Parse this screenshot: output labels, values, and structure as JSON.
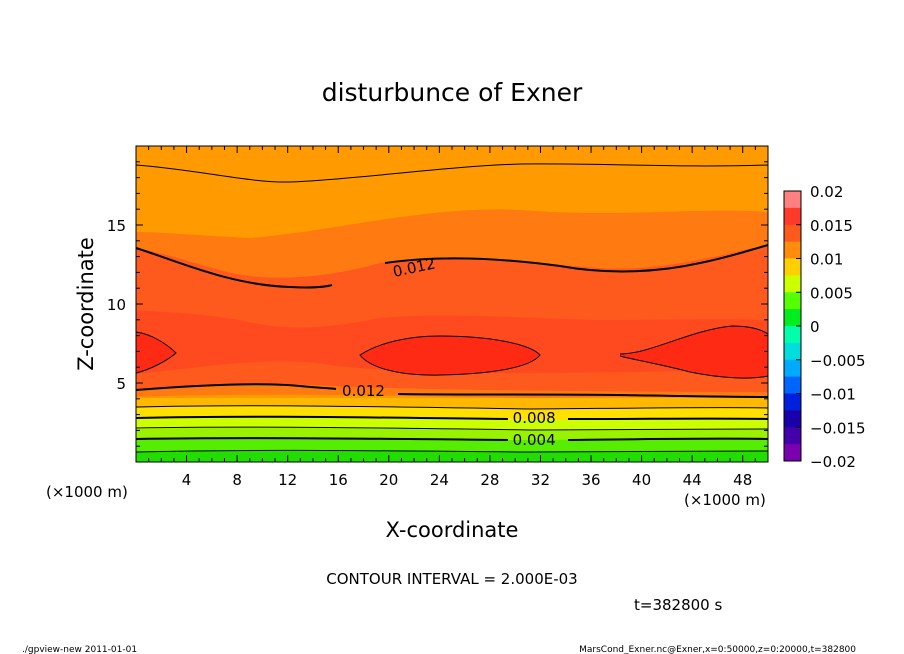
{
  "chart_data": {
    "type": "heatmap",
    "title": "disturbunce of Exner",
    "xlabel": "X-coordinate",
    "ylabel": "Z-coordinate",
    "x_unit": "(×1000 m)",
    "x_unit_left": "(×1000 m)",
    "xlim": [
      0,
      50
    ],
    "ylim": [
      0,
      20
    ],
    "x_ticks": [
      4,
      8,
      12,
      16,
      20,
      24,
      28,
      32,
      36,
      40,
      44,
      48
    ],
    "y_ticks": [
      5,
      10,
      15
    ],
    "contour_interval_text": "CONTOUR INTERVAL = 2.000E-03",
    "time_text": "t=382800 s",
    "footer_left": "./gpview-new   2011-01-01",
    "footer_right": "MarsCond_Exner.nc@Exner,x=0:50000,z=0:20000,t=382800",
    "colorbar": {
      "levels": [
        0.02,
        0.015,
        0.01,
        0.005,
        0,
        -0.005,
        -0.01,
        -0.015,
        -0.02
      ],
      "tick_labels": [
        "0.02",
        "0.015",
        "0.01",
        "0.005",
        "0",
        "−0.005",
        "−0.01",
        "−0.015",
        "−0.02"
      ],
      "colors": [
        "#ff8080",
        "#ff3a2a",
        "#ff5a1e",
        "#ff8c0a",
        "#ffd000",
        "#ccff00",
        "#55ff00",
        "#00ee20",
        "#00ffaa",
        "#00dddd",
        "#00aaff",
        "#0066ff",
        "#0020dd",
        "#1800aa",
        "#4400aa",
        "#7a00b0"
      ]
    },
    "contour_labels": [
      {
        "text": "0.012",
        "x": 22,
        "z": 12.3
      },
      {
        "text": "0.012",
        "x": 18,
        "z": 4.5
      },
      {
        "text": "0.008",
        "x": 31.5,
        "z": 2.8
      },
      {
        "text": "0.004",
        "x": 31.5,
        "z": 1.4
      }
    ]
  }
}
